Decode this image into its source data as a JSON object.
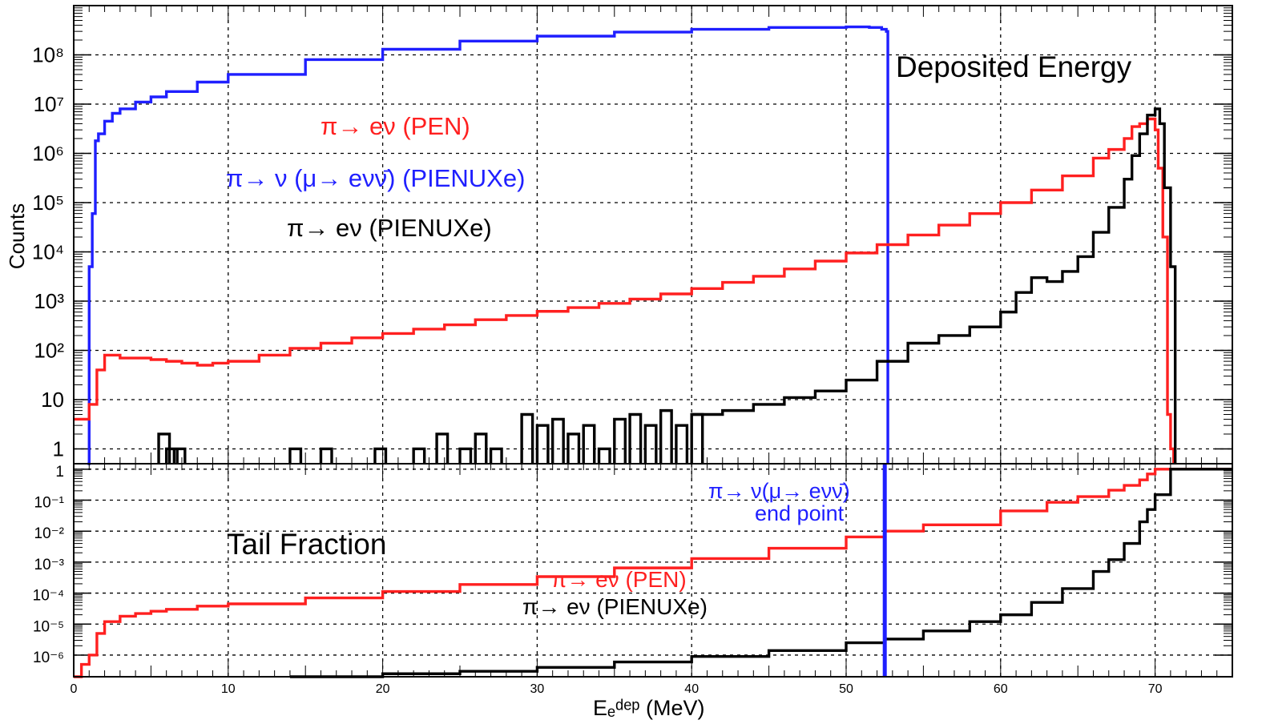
{
  "colors": {
    "muon": "#1f1fff",
    "pen": "#ff2020",
    "pienuxe": "#000000",
    "grid": "#000000",
    "frame": "#000000"
  },
  "chart_data": [
    {
      "type": "line",
      "title": "Deposited Energy",
      "ylabel": "Counts",
      "xlabel": "",
      "xlim": [
        0,
        75
      ],
      "y_scale": "log",
      "ylim": [
        0.5,
        1000000000
      ],
      "grid": true,
      "y_tick_labels": [
        "1",
        "10",
        "10²",
        "10³",
        "10⁴",
        "10⁵",
        "10⁶",
        "10⁷",
        "10⁸"
      ],
      "annotations": [
        {
          "id": "pen",
          "text": "π→ eν  (PEN)",
          "color": "#ff2020"
        },
        {
          "id": "muon",
          "text": "π→ ν (μ→ eνν̄)  (PIENUXe)",
          "color": "#1f1fff"
        },
        {
          "id": "pienuxe",
          "text": "π→ eν  (PIENUXe)",
          "color": "#000000"
        }
      ],
      "series": [
        {
          "id": "muon",
          "color": "#1f1fff",
          "x": [
            0.9,
            1.0,
            1.2,
            1.4,
            1.6,
            2,
            2.5,
            3,
            4,
            5,
            6,
            8,
            10,
            15,
            20,
            25,
            30,
            35,
            40,
            45,
            50,
            51.5,
            52.3,
            52.6,
            52.7
          ],
          "y": [
            0.5,
            5000,
            60000,
            1800000,
            2500000,
            4500000,
            6500000,
            8000000,
            11000000,
            14000000,
            18000000,
            28000000,
            40000000,
            80000000,
            130000000,
            190000000,
            240000000,
            290000000,
            330000000,
            360000000,
            370000000,
            360000000,
            330000000,
            300000000,
            0.5
          ]
        },
        {
          "id": "pen",
          "color": "#ff2020",
          "x": [
            0,
            0.5,
            1,
            1.5,
            2,
            3,
            4,
            5,
            6,
            7,
            8,
            9,
            10,
            12,
            14,
            16,
            18,
            20,
            22,
            24,
            26,
            28,
            30,
            32,
            34,
            36,
            38,
            40,
            42,
            44,
            46,
            48,
            50,
            52,
            54,
            56,
            58,
            60,
            62,
            64,
            66,
            67,
            68,
            68.5,
            69,
            69.5,
            70,
            70.2,
            70.5,
            70.8,
            71.0,
            71.2
          ],
          "y": [
            4,
            4,
            8,
            40,
            80,
            70,
            70,
            65,
            60,
            55,
            50,
            55,
            60,
            80,
            110,
            140,
            180,
            220,
            270,
            330,
            420,
            510,
            620,
            740,
            900,
            1100,
            1400,
            1800,
            2400,
            3200,
            4500,
            6500,
            9500,
            14000,
            22000,
            35000,
            60000,
            100000,
            180000,
            350000,
            800000,
            1200000,
            2000000,
            3500000,
            4000000,
            5000000,
            3000000,
            500000,
            20000,
            5,
            1,
            0.5
          ]
        },
        {
          "id": "pienuxe",
          "color": "#000000",
          "x": [
            40,
            42,
            44,
            46,
            48,
            50,
            52,
            54,
            56,
            58,
            60,
            61,
            62,
            63,
            64,
            65,
            66,
            67,
            68,
            68.5,
            69,
            69.5,
            70,
            70.3,
            70.6,
            71,
            71.3
          ],
          "y": [
            5,
            6,
            8,
            11,
            15,
            25,
            60,
            140,
            200,
            300,
            600,
            1500,
            3000,
            2500,
            4000,
            8000,
            25000,
            80000,
            300000,
            900000,
            2500000,
            6000000,
            8000000,
            4000000,
            200000,
            5000,
            0.5
          ]
        },
        {
          "id": "pienuxe_sparse",
          "color": "#000000",
          "x": [
            5.5,
            6,
            6.5,
            14,
            16,
            19.5,
            22,
            23.5,
            25,
            26,
            27,
            29,
            30,
            31,
            32,
            33,
            34,
            35,
            36,
            37,
            38,
            39,
            40
          ],
          "y": [
            2,
            1,
            1,
            1,
            1,
            1,
            1,
            2,
            1,
            2,
            1,
            5,
            3,
            4,
            2,
            3,
            1,
            4,
            5,
            3,
            6,
            3,
            5
          ]
        }
      ]
    },
    {
      "type": "line",
      "title": "Tail Fraction",
      "ylabel": "",
      "xlabel": "Eₑᵈᵉᵖ (MeV)",
      "xlim": [
        0,
        75
      ],
      "y_scale": "log",
      "ylim": [
        2e-07,
        1.5
      ],
      "grid": true,
      "x_tick_labels": [
        "0",
        "10",
        "20",
        "30",
        "40",
        "50",
        "60",
        "70"
      ],
      "y_tick_labels": [
        "10⁻⁶",
        "10⁻⁵",
        "10⁻⁴",
        "10⁻³",
        "10⁻²",
        "10⁻¹",
        "1"
      ],
      "annotations": [
        {
          "id": "endpoint1",
          "text": "π→ ν(μ→ eνν̄)",
          "color": "#1f1fff"
        },
        {
          "id": "endpoint2",
          "text": "end point",
          "color": "#1f1fff"
        },
        {
          "id": "pen",
          "text": "π→ eν  (PEN)",
          "color": "#ff2020"
        },
        {
          "id": "pienuxe",
          "text": "π→ eν  (PIENUXe)",
          "color": "#000000"
        }
      ],
      "markers": [
        {
          "id": "muon_endpoint",
          "x": 52.5,
          "color": "#1f1fff"
        }
      ],
      "series": [
        {
          "id": "pen",
          "color": "#ff2020",
          "x": [
            0,
            0.5,
            1,
            1.5,
            2,
            3,
            4,
            5,
            6,
            8,
            10,
            15,
            20,
            25,
            30,
            35,
            40,
            45,
            50,
            52.5,
            55,
            60,
            63,
            65,
            67,
            68,
            69,
            69.5,
            70,
            71,
            75
          ],
          "y": [
            2e-07,
            5e-07,
            1e-06,
            5e-06,
            1.2e-05,
            1.8e-05,
            2.2e-05,
            2.6e-05,
            3e-05,
            3.8e-05,
            4.5e-05,
            7e-05,
            0.000113,
            0.00019,
            0.00034,
            0.00065,
            0.0013,
            0.0028,
            0.0065,
            0.01,
            0.016,
            0.045,
            0.085,
            0.13,
            0.21,
            0.3,
            0.45,
            0.7,
            1,
            1,
            1
          ]
        },
        {
          "id": "pienuxe",
          "color": "#000000",
          "x": [
            14,
            20,
            25,
            30,
            35,
            40,
            45,
            50,
            52.5,
            55,
            58,
            60,
            62,
            64,
            66,
            67,
            68,
            69,
            69.5,
            70,
            71,
            75
          ],
          "y": [
            2e-07,
            2.5e-07,
            3e-07,
            4e-07,
            6e-07,
            9e-07,
            1.4e-06,
            2.5e-06,
            3.3e-06,
            6e-06,
            1.2e-05,
            2e-05,
            5e-05,
            0.00014,
            0.0005,
            0.0012,
            0.004,
            0.02,
            0.05,
            0.15,
            1,
            1
          ]
        }
      ]
    }
  ]
}
